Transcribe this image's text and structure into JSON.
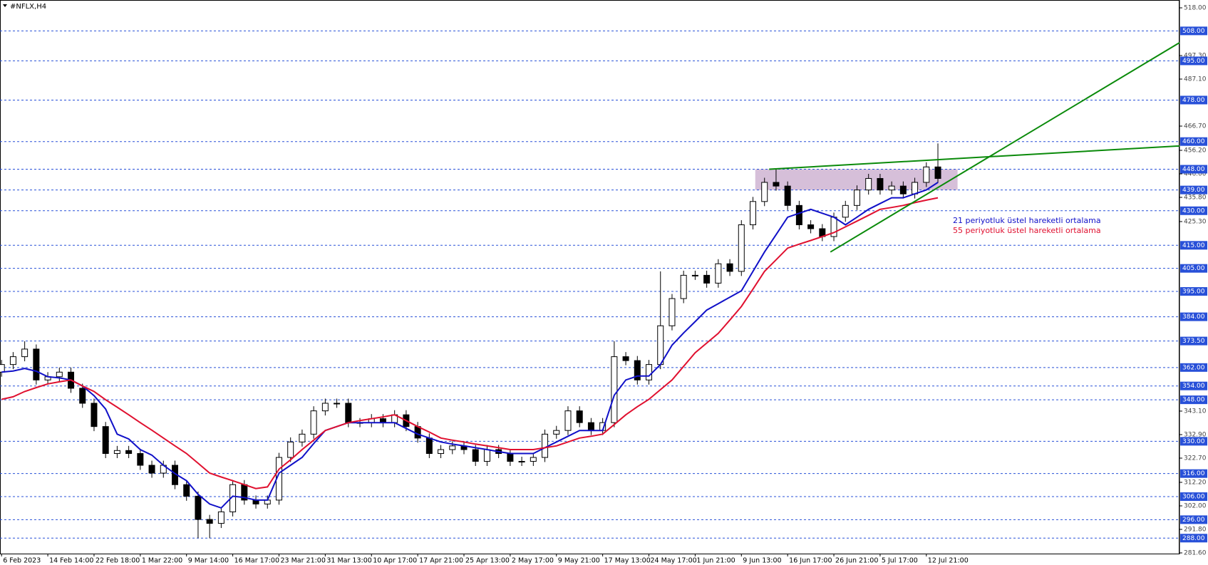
{
  "chart_data": {
    "type": "candlestick",
    "title": "#NFLX,H4",
    "categories": [
      "6 Feb 2023",
      null,
      null,
      null,
      "14 Feb 14:00",
      null,
      null,
      null,
      "22 Feb 18:00",
      null,
      null,
      null,
      "1 Mar 22:00",
      null,
      null,
      null,
      "9 Mar 14:00",
      null,
      null,
      null,
      "16 Mar 17:00",
      null,
      null,
      null,
      "23 Mar 21:00",
      null,
      null,
      null,
      "31 Mar 13:00",
      null,
      null,
      null,
      "10 Apr 17:00",
      null,
      null,
      null,
      "17 Apr 21:00",
      null,
      null,
      null,
      "25 Apr 13:00",
      null,
      null,
      null,
      "2 May 17:00",
      null,
      null,
      null,
      "9 May 21:00",
      null,
      null,
      null,
      "17 May 13:00",
      null,
      null,
      null,
      "24 May 17:00",
      null,
      null,
      null,
      "1 Jun 21:00",
      null,
      null,
      null,
      "9 Jun 13:00",
      null,
      null,
      null,
      "16 Jun 17:00",
      null,
      null,
      null,
      "26 Jun 21:00",
      null,
      null,
      null,
      "5 Jul 17:00",
      null,
      null,
      null,
      "12 Jul 21:00",
      null
    ],
    "open": [
      360,
      363.3,
      366.7,
      370,
      356.6,
      358,
      360,
      353,
      346.5,
      336.4,
      324.7,
      326,
      324.7,
      319.6,
      316.2,
      319.6,
      311.2,
      306.2,
      296.1,
      294.4,
      299.4,
      311.2,
      304.5,
      302.8,
      304.5,
      323,
      329.7,
      333.1,
      343.2,
      346.5,
      346.5,
      338.1,
      338.1,
      339.8,
      338.1,
      341.5,
      336.4,
      331.4,
      324.7,
      326.4,
      328,
      326.4,
      321.3,
      326.4,
      324.7,
      321.3,
      321.3,
      323,
      333.1,
      334.7,
      343.2,
      338.1,
      334.7,
      338.1,
      366.7,
      365,
      356.6,
      363.3,
      380.1,
      391.9,
      402,
      402,
      398.6,
      407,
      403.7,
      423.9,
      434,
      442.3,
      440.7,
      432.3,
      423.9,
      422.2,
      418.8,
      427.2,
      432.3,
      439,
      444,
      439,
      440.7,
      437.3,
      442.3,
      449
    ],
    "high": [
      365.3,
      368.7,
      373.4,
      372,
      360,
      362,
      362,
      355,
      348.5,
      338.4,
      328,
      328,
      326.7,
      321.6,
      321.6,
      321.6,
      313.2,
      308.2,
      298.1,
      301.4,
      313.2,
      313.2,
      306.5,
      306.5,
      325,
      331.7,
      335.1,
      345.2,
      348.5,
      348.5,
      348.5,
      340.1,
      341.8,
      341.8,
      343.5,
      343.5,
      338.4,
      333.4,
      328.4,
      330,
      330,
      328.4,
      328.4,
      328.4,
      326.7,
      323.3,
      325,
      335.1,
      336.7,
      345.2,
      345.2,
      340.1,
      340.1,
      373.4,
      368.7,
      367,
      365.3,
      403.7,
      393.9,
      404,
      404,
      404,
      409,
      409,
      425.9,
      436,
      444.3,
      448,
      442.7,
      434.3,
      425.9,
      424.2,
      429.2,
      434.3,
      441,
      446,
      446,
      442.7,
      442.7,
      444.3,
      451,
      459.2
    ],
    "low": [
      358,
      361.3,
      364.7,
      354.6,
      354.6,
      356,
      351,
      344.5,
      334.4,
      322.7,
      322.7,
      322.7,
      317.6,
      314.2,
      314.2,
      309.2,
      304.2,
      288,
      288,
      292.4,
      297.4,
      302.5,
      300.8,
      300.8,
      302.5,
      321,
      327.7,
      331.1,
      341.2,
      344.5,
      336.1,
      336.1,
      336.1,
      336.1,
      336.1,
      334.4,
      329.4,
      322.7,
      322.7,
      324.4,
      324.4,
      319.3,
      319.3,
      322.7,
      319.3,
      319.3,
      319.3,
      321,
      331.1,
      332.7,
      336.1,
      332.7,
      332.7,
      336.1,
      363,
      354.6,
      354.6,
      361.3,
      378.1,
      389.9,
      400,
      396.6,
      396.6,
      401.7,
      401.7,
      421.9,
      432,
      438.7,
      430.3,
      421.9,
      420.2,
      416.8,
      416.8,
      425.2,
      430.3,
      437,
      437,
      437,
      435.3,
      435.3,
      440.3,
      442
    ],
    "close": [
      363.3,
      366.7,
      370,
      356.6,
      358,
      360,
      353,
      346.5,
      336.4,
      324.7,
      326,
      324.7,
      319.6,
      316.2,
      319.6,
      311.2,
      306.2,
      296.1,
      294.4,
      299.4,
      311.2,
      304.5,
      302.8,
      304.5,
      323,
      329.7,
      333.1,
      343.2,
      346.5,
      346.5,
      338.1,
      338.1,
      339.8,
      338.1,
      341.5,
      336.4,
      331.4,
      324.7,
      326.4,
      328,
      326.4,
      321.3,
      326.4,
      324.7,
      321.3,
      321.3,
      323,
      333.1,
      334.7,
      343.2,
      338.1,
      334.7,
      338.1,
      366.7,
      365,
      356.6,
      363.3,
      380.1,
      391.9,
      402,
      402,
      398.6,
      407,
      403.7,
      423.9,
      434,
      442.3,
      440.7,
      432.3,
      423.9,
      422.2,
      418.8,
      427.2,
      432.3,
      439,
      444,
      439,
      440.7,
      437.3,
      442.3,
      449,
      444
    ],
    "up_color": "#ffffff",
    "down_color": "#000000",
    "series": [
      {
        "name": "21 periyotluk üstel hareketli ortalama",
        "color": "#1010c8",
        "values": [
          360,
          360.5,
          361.6,
          360.4,
          358,
          357.5,
          356.6,
          354,
          349.8,
          344,
          333.1,
          331,
          326.4,
          324,
          319.6,
          316,
          312.9,
          307,
          302.8,
          301.1,
          306.2,
          305.6,
          304.5,
          304.5,
          316.2,
          319.6,
          323,
          329,
          334.7,
          336.4,
          338.1,
          338.1,
          338.1,
          338.1,
          338.1,
          335.6,
          333.1,
          331.4,
          329.7,
          328.8,
          328,
          327.2,
          326.4,
          325.5,
          324.7,
          324.7,
          324.7,
          327.2,
          329.7,
          332.2,
          334.7,
          334.7,
          334.7,
          350,
          356.6,
          358.3,
          358.3,
          363.3,
          371.7,
          377,
          381.9,
          386.9,
          389.7,
          392.5,
          395.3,
          403.7,
          412.1,
          419.6,
          427.2,
          428.9,
          430.6,
          428.9,
          427.2,
          423.9,
          427.2,
          430.6,
          433.1,
          435.6,
          435.6,
          437.3,
          439,
          442.3
        ]
      },
      {
        "name": "55 periyotluk üstel hareketli ortalama",
        "color": "#e0102f",
        "values": [
          348.2,
          349.3,
          351.6,
          353.3,
          354.9,
          355.8,
          356.6,
          354,
          351.6,
          348,
          344.8,
          341.5,
          338.1,
          334.8,
          331.4,
          328,
          324.7,
          320.5,
          316.2,
          314.5,
          312.9,
          311.2,
          309.5,
          310.2,
          317.9,
          322,
          326.4,
          330.5,
          334.7,
          336.4,
          338.1,
          339,
          339.8,
          340.6,
          341.5,
          339,
          336.4,
          334,
          331.4,
          330.5,
          329.7,
          328.8,
          328,
          327.2,
          326.4,
          326.4,
          326.4,
          327.2,
          328,
          329.7,
          331.4,
          332.2,
          333.1,
          337.3,
          341.5,
          345,
          348.2,
          352.4,
          356.6,
          362.5,
          368.4,
          372.6,
          376.8,
          382.6,
          388.5,
          396,
          403.7,
          408.7,
          413.8,
          415.5,
          417.1,
          418.8,
          420.5,
          423,
          425.5,
          428,
          430.6,
          431.4,
          432.3,
          433.5,
          434.6,
          435.6
        ]
      }
    ],
    "ylim": [
      281.6,
      518
    ],
    "yticks": [
      {
        "value": 518,
        "label": "518.00"
      },
      {
        "value": 497.3,
        "label": "497.30"
      },
      {
        "value": 487.1,
        "label": "487.10"
      },
      {
        "value": 466.7,
        "label": "466.70"
      },
      {
        "value": 456.2,
        "label": "456.20"
      },
      {
        "value": 446,
        "label": "446.00"
      },
      {
        "value": 435.8,
        "label": "435.80"
      },
      {
        "value": 425.3,
        "label": "425.30"
      },
      {
        "value": 343.1,
        "label": "343.10"
      },
      {
        "value": 332.9,
        "label": "332.90"
      },
      {
        "value": 322.7,
        "label": "322.70"
      },
      {
        "value": 312.2,
        "label": "312.20"
      },
      {
        "value": 302,
        "label": "302.00"
      },
      {
        "value": 291.8,
        "label": "291.80"
      },
      {
        "value": 281.6,
        "label": "281.60"
      }
    ],
    "levels": [
      {
        "value": 508,
        "label": "508.00"
      },
      {
        "value": 495,
        "label": "495.00"
      },
      {
        "value": 478,
        "label": "478.00"
      },
      {
        "value": 460,
        "label": "460.00"
      },
      {
        "value": 448,
        "label": "448.00"
      },
      {
        "value": 439,
        "label": "439.00"
      },
      {
        "value": 430,
        "label": "430.00"
      },
      {
        "value": 415,
        "label": "415.00"
      },
      {
        "value": 405,
        "label": "405.00"
      },
      {
        "value": 395,
        "label": "395.00"
      },
      {
        "value": 384,
        "label": "384.00"
      },
      {
        "value": 373.5,
        "label": "373.50"
      },
      {
        "value": 362,
        "label": "362.00"
      },
      {
        "value": 354,
        "label": "354.00"
      },
      {
        "value": 348,
        "label": "348.00"
      },
      {
        "value": 330,
        "label": "330.00"
      },
      {
        "value": 316,
        "label": "316.00"
      },
      {
        "value": 306,
        "label": "306.00"
      },
      {
        "value": 296,
        "label": "296.00"
      },
      {
        "value": 288,
        "label": "288.00"
      }
    ],
    "level_color": "#2850d8",
    "trendlines": [
      {
        "color": "#0a8a0a",
        "x": [
          66.4,
          101.9
        ],
        "y": [
          448,
          458.1
        ]
      },
      {
        "color": "#0a8a0a",
        "x": [
          71.7,
          101.9
        ],
        "y": [
          412.1,
          502.9
        ]
      }
    ],
    "zone": {
      "x": [
        65.2,
        82.7
      ],
      "y": [
        439,
        448
      ],
      "color": "#d6bfd9"
    }
  }
}
